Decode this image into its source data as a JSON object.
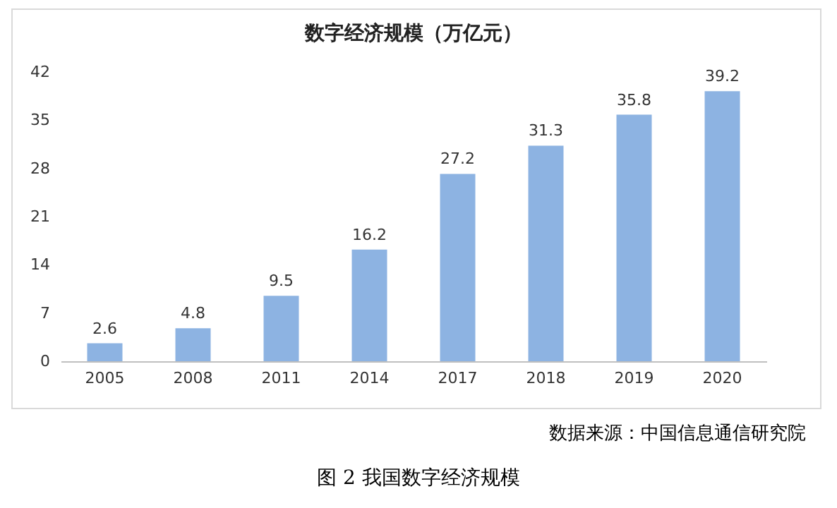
{
  "chart_data": {
    "type": "bar",
    "title": "数字经济规模（万亿元）",
    "categories": [
      "2005",
      "2008",
      "2011",
      "2014",
      "2017",
      "2018",
      "2019",
      "2020"
    ],
    "values": [
      2.6,
      4.8,
      9.5,
      16.2,
      27.2,
      31.3,
      35.8,
      39.2
    ],
    "color": "#8db3e2",
    "ylim": [
      0,
      42
    ],
    "yticks": [
      0,
      7,
      14,
      21,
      28,
      35,
      42
    ],
    "grid": false,
    "data_labels": true,
    "annotations": [
      "数据来源：中国信息通信研究院",
      "图 2  我国数字经济规模"
    ]
  }
}
